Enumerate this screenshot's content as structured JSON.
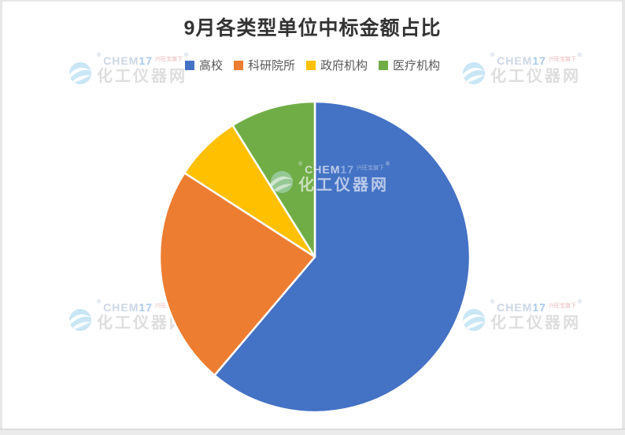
{
  "chart_data": {
    "type": "pie",
    "title": "9月各类型单位中标金额占比",
    "categories": [
      "高校",
      "科研院所",
      "政府机构",
      "医疗机构"
    ],
    "values": [
      61.2,
      22.9,
      7.0,
      8.9
    ],
    "unit": "percent",
    "colors": [
      "#4472C4",
      "#ED7D31",
      "#FFC000",
      "#70AD47"
    ],
    "start_angle_deg": 0,
    "direction": "clockwise",
    "legend_position": "top",
    "data_labels_shown": false,
    "values_estimated_from_geometry": true
  },
  "watermark": {
    "brand_chem": "CHEM",
    "brand_17": "17",
    "registered": "®",
    "tagline": "兴旺宝旗下",
    "site_name": "化工仪器网"
  }
}
